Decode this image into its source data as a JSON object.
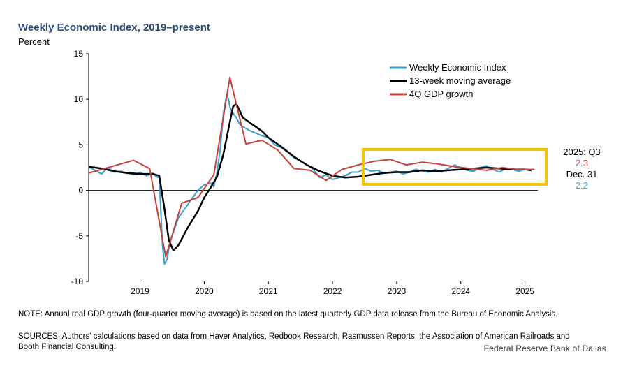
{
  "chart_data": {
    "type": "line",
    "title": "Weekly Economic Index, 2019–present",
    "ylabel": "Percent",
    "ylim": [
      -10,
      15
    ],
    "xlim": [
      2018.2,
      2025.2
    ],
    "yticks": [
      "15",
      "10",
      "5",
      "0",
      "-5",
      "-10"
    ],
    "xticks": [
      "2019",
      "2020",
      "2021",
      "2022",
      "2023",
      "2024",
      "2025"
    ],
    "legend": {
      "position": "top-right",
      "entries": [
        "Weekly Economic Index",
        "13-week moving average",
        "4Q GDP growth"
      ]
    },
    "series": [
      {
        "name": "Weekly Economic Index",
        "color": "#3a9fce",
        "x": [
          2018.2,
          2018.3,
          2018.4,
          2018.5,
          2018.6,
          2018.7,
          2018.8,
          2018.9,
          2019.0,
          2019.1,
          2019.2,
          2019.25,
          2019.3,
          2019.35,
          2019.38,
          2019.42,
          2019.46,
          2019.5,
          2019.55,
          2019.6,
          2019.7,
          2019.8,
          2019.9,
          2020.0,
          2020.1,
          2020.15,
          2020.2,
          2020.25,
          2020.3,
          2020.35,
          2020.38,
          2020.4,
          2020.42,
          2020.45,
          2020.5,
          2020.55,
          2020.6,
          2020.7,
          2020.8,
          2020.9,
          2021.0,
          2021.1,
          2021.2,
          2021.3,
          2021.4,
          2021.5,
          2021.6,
          2021.7,
          2021.8,
          2021.9,
          2022.0,
          2022.1,
          2022.2,
          2022.3,
          2022.4,
          2022.5,
          2022.6,
          2022.7,
          2022.8,
          2022.9,
          2023.0,
          2023.1,
          2023.2,
          2023.3,
          2023.4,
          2023.5,
          2023.6,
          2023.7,
          2023.8,
          2023.9,
          2024.0,
          2024.1,
          2024.2,
          2024.3,
          2024.4,
          2024.5,
          2024.6,
          2024.7,
          2024.8,
          2024.9,
          2025.0,
          2025.1
        ],
        "y": [
          2.6,
          2.2,
          1.8,
          2.5,
          2.0,
          2.1,
          1.9,
          1.7,
          2.0,
          1.6,
          1.9,
          1.5,
          1.4,
          -6.0,
          -8.1,
          -7.6,
          -6.0,
          -5.0,
          -4.0,
          -3.0,
          -2.0,
          -1.0,
          0.0,
          0.6,
          0.8,
          0.4,
          2.0,
          4.5,
          8.5,
          10.5,
          10.0,
          9.2,
          8.8,
          8.5,
          8.0,
          7.3,
          7.0,
          6.6,
          6.3,
          6.0,
          5.8,
          5.0,
          4.7,
          4.2,
          3.6,
          3.2,
          2.8,
          2.3,
          1.4,
          1.7,
          1.2,
          1.4,
          1.6,
          2.0,
          2.0,
          2.4,
          2.1,
          2.2,
          1.9,
          2.0,
          2.1,
          1.8,
          2.0,
          2.3,
          2.1,
          2.0,
          2.3,
          2.0,
          2.4,
          2.8,
          2.5,
          2.2,
          2.1,
          2.5,
          2.7,
          2.3,
          2.0,
          2.4,
          2.3,
          2.1,
          2.3,
          2.2
        ]
      },
      {
        "name": "13-week moving average",
        "color": "#000000",
        "x": [
          2018.2,
          2018.4,
          2018.6,
          2018.8,
          2019.0,
          2019.2,
          2019.3,
          2019.38,
          2019.45,
          2019.52,
          2019.6,
          2019.75,
          2019.9,
          2020.0,
          2020.1,
          2020.2,
          2020.3,
          2020.4,
          2020.45,
          2020.5,
          2020.55,
          2020.6,
          2020.7,
          2020.8,
          2020.9,
          2021.0,
          2021.2,
          2021.4,
          2021.6,
          2021.8,
          2022.0,
          2022.2,
          2022.4,
          2022.6,
          2022.8,
          2023.0,
          2023.2,
          2023.4,
          2023.6,
          2023.8,
          2024.0,
          2024.2,
          2024.4,
          2024.6,
          2024.8,
          2025.0,
          2025.1
        ],
        "y": [
          2.6,
          2.4,
          2.1,
          1.9,
          1.8,
          1.8,
          1.6,
          -2.0,
          -5.5,
          -6.6,
          -6.0,
          -4.0,
          -2.3,
          -0.8,
          0.3,
          1.5,
          4.0,
          7.5,
          9.2,
          9.5,
          8.8,
          8.0,
          7.5,
          7.0,
          6.5,
          5.8,
          4.8,
          3.7,
          2.8,
          2.1,
          1.6,
          1.4,
          1.5,
          1.7,
          1.9,
          2.0,
          2.0,
          2.2,
          2.1,
          2.2,
          2.3,
          2.4,
          2.5,
          2.4,
          2.3,
          2.3,
          2.2
        ]
      },
      {
        "name": "4Q GDP growth",
        "color": "#c8413b",
        "x": [
          2018.2,
          2018.4,
          2018.65,
          2018.9,
          2019.15,
          2019.4,
          2019.65,
          2019.9,
          2020.15,
          2020.4,
          2020.65,
          2020.9,
          2021.15,
          2021.4,
          2021.65,
          2021.9,
          2022.15,
          2022.4,
          2022.65,
          2022.9,
          2023.15,
          2023.4,
          2023.65,
          2023.9,
          2024.15,
          2024.4,
          2024.65,
          2024.9,
          2025.15
        ],
        "y": [
          1.9,
          2.3,
          2.8,
          3.3,
          2.4,
          -7.3,
          -1.4,
          -0.8,
          1.7,
          12.4,
          5.1,
          5.5,
          4.4,
          2.4,
          2.2,
          1.1,
          2.3,
          2.8,
          3.2,
          3.4,
          2.8,
          3.1,
          2.9,
          2.6,
          2.4,
          2.2,
          2.5,
          2.3,
          2.3
        ]
      }
    ]
  },
  "annotations": {
    "q_label": "2025: Q3",
    "q_value": "2.3",
    "q_color": "#c8413b",
    "d_label": "Dec. 31",
    "d_value": "2.2",
    "d_color": "#3a9fce"
  },
  "highlight_color": "#f2c500",
  "notes": {
    "note": "NOTE: Annual real GDP growth (four-quarter moving average) is based on the latest quarterly GDP data release from the Bureau of Economic Analysis.",
    "sources": "SOURCES: Authors' calculations based on data from Haver Analytics, Redbook Research, Rasmussen Reports, the Association of American Railroads and Booth Financial Consulting."
  },
  "credit": "Federal Reserve Bank of Dallas"
}
